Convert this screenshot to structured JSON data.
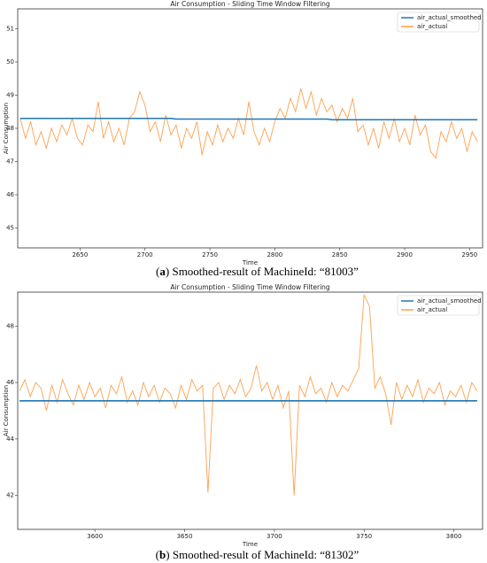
{
  "chart_data": [
    {
      "type": "line",
      "title": "Air Consumption - Sliding Time Window Filtering",
      "x_label": "Time",
      "y_label": "Air Consumption",
      "caption": [
        "(",
        "a",
        ") Smoothed-result of MachineId: “81003”"
      ],
      "xlim": [
        2602,
        2960
      ],
      "xticks": [
        2650,
        2700,
        2750,
        2800,
        2850,
        2900,
        2950
      ],
      "ylim": [
        44.4,
        51.6
      ],
      "yticks": [
        45,
        46,
        47,
        48,
        49,
        50,
        51
      ],
      "legend": "upper right",
      "x": [
        2604,
        2608,
        2612,
        2616,
        2620,
        2624,
        2628,
        2632,
        2636,
        2640,
        2644,
        2648,
        2652,
        2656,
        2660,
        2664,
        2668,
        2672,
        2676,
        2680,
        2684,
        2688,
        2692,
        2696,
        2700,
        2704,
        2708,
        2712,
        2716,
        2720,
        2724,
        2728,
        2732,
        2736,
        2740,
        2744,
        2748,
        2752,
        2756,
        2760,
        2764,
        2768,
        2772,
        2776,
        2780,
        2784,
        2788,
        2792,
        2796,
        2800,
        2804,
        2808,
        2812,
        2816,
        2820,
        2824,
        2828,
        2832,
        2836,
        2840,
        2844,
        2848,
        2852,
        2856,
        2860,
        2864,
        2868,
        2872,
        2876,
        2880,
        2884,
        2888,
        2892,
        2896,
        2900,
        2904,
        2908,
        2912,
        2916,
        2920,
        2924,
        2928,
        2932,
        2936,
        2940,
        2944,
        2948,
        2952,
        2956
      ],
      "series": [
        {
          "name": "air_actual_smoothed",
          "color": "#1f77b4",
          "values": [
            48.3,
            48.3,
            48.3,
            48.3,
            48.3,
            48.3,
            48.3,
            48.3,
            48.3,
            48.3,
            48.3,
            48.3,
            48.3,
            48.3,
            48.3,
            48.3,
            48.3,
            48.3,
            48.3,
            48.3,
            48.3,
            48.3,
            48.3,
            48.3,
            48.3,
            48.3,
            48.3,
            48.3,
            48.3,
            48.3,
            48.28,
            48.28,
            48.28,
            48.28,
            48.28,
            48.28,
            48.28,
            48.28,
            48.28,
            48.28,
            48.28,
            48.28,
            48.28,
            48.28,
            48.28,
            48.28,
            48.28,
            48.28,
            48.28,
            48.28,
            48.28,
            48.28,
            48.28,
            48.28,
            48.28,
            48.28,
            48.28,
            48.28,
            48.28,
            48.28,
            48.26,
            48.26,
            48.26,
            48.26,
            48.26,
            48.26,
            48.26,
            48.26,
            48.26,
            48.26,
            48.26,
            48.26,
            48.26,
            48.26,
            48.26,
            48.26,
            48.26,
            48.26,
            48.26,
            48.26,
            48.26,
            48.26,
            48.26,
            48.26,
            48.26,
            48.26,
            48.26,
            48.26,
            48.26
          ]
        },
        {
          "name": "air_actual",
          "color": "#ffa04d",
          "values": [
            48.3,
            47.7,
            48.2,
            47.5,
            47.9,
            47.4,
            48.0,
            47.6,
            48.1,
            47.8,
            48.3,
            47.7,
            47.5,
            48.1,
            47.9,
            48.8,
            47.7,
            48.2,
            47.6,
            48.0,
            47.5,
            48.3,
            48.5,
            49.1,
            48.7,
            47.9,
            48.2,
            47.6,
            48.4,
            47.8,
            48.1,
            47.4,
            48.0,
            47.7,
            48.2,
            47.2,
            47.9,
            47.5,
            48.1,
            47.6,
            48.0,
            47.7,
            48.3,
            47.8,
            48.8,
            47.9,
            47.5,
            48.0,
            47.6,
            48.2,
            48.6,
            48.3,
            48.9,
            48.5,
            49.2,
            48.6,
            49.1,
            48.4,
            48.9,
            48.5,
            48.7,
            48.2,
            48.6,
            48.3,
            48.9,
            47.9,
            48.1,
            47.5,
            48.0,
            47.4,
            48.2,
            47.7,
            48.3,
            47.6,
            48.0,
            47.5,
            48.4,
            47.8,
            48.1,
            47.3,
            47.1,
            47.9,
            47.6,
            48.2,
            47.7,
            48.0,
            47.3,
            47.9,
            47.6
          ]
        }
      ]
    },
    {
      "type": "line",
      "title": "Air Consumption - Sliding Time Window Filtering",
      "x_label": "Time",
      "y_label": "Air Consumption",
      "caption": [
        "(",
        "b",
        ") Smoothed-result of MachineId: “81302”"
      ],
      "xlim": [
        3557,
        3816
      ],
      "xticks": [
        3600,
        3650,
        3700,
        3750,
        3800
      ],
      "ylim": [
        40.8,
        49.2
      ],
      "yticks": [
        42,
        44,
        46,
        48
      ],
      "legend": "upper right",
      "x": [
        3558,
        3561,
        3564,
        3567,
        3570,
        3573,
        3576,
        3579,
        3582,
        3585,
        3588,
        3591,
        3594,
        3597,
        3600,
        3603,
        3606,
        3609,
        3612,
        3615,
        3618,
        3621,
        3624,
        3627,
        3630,
        3633,
        3636,
        3639,
        3642,
        3645,
        3648,
        3651,
        3654,
        3657,
        3660,
        3663,
        3666,
        3669,
        3672,
        3675,
        3678,
        3681,
        3684,
        3687,
        3690,
        3693,
        3696,
        3699,
        3702,
        3705,
        3708,
        3711,
        3714,
        3717,
        3720,
        3723,
        3726,
        3729,
        3732,
        3735,
        3738,
        3741,
        3744,
        3747,
        3750,
        3753,
        3756,
        3759,
        3762,
        3765,
        3768,
        3771,
        3774,
        3777,
        3780,
        3783,
        3786,
        3789,
        3792,
        3795,
        3798,
        3801,
        3804,
        3807,
        3810,
        3813
      ],
      "series": [
        {
          "name": "air_actual_smoothed",
          "color": "#1f77b4",
          "values": [
            45.35,
            45.35,
            45.35,
            45.35,
            45.35,
            45.35,
            45.35,
            45.35,
            45.35,
            45.35,
            45.35,
            45.35,
            45.35,
            45.35,
            45.35,
            45.35,
            45.35,
            45.35,
            45.35,
            45.35,
            45.35,
            45.35,
            45.35,
            45.35,
            45.35,
            45.35,
            45.35,
            45.35,
            45.35,
            45.35,
            45.35,
            45.35,
            45.35,
            45.35,
            45.35,
            45.35,
            45.35,
            45.35,
            45.35,
            45.35,
            45.35,
            45.35,
            45.35,
            45.35,
            45.35,
            45.35,
            45.35,
            45.35,
            45.35,
            45.35,
            45.35,
            45.35,
            45.35,
            45.35,
            45.35,
            45.35,
            45.35,
            45.35,
            45.35,
            45.35,
            45.35,
            45.35,
            45.35,
            45.35,
            45.35,
            45.35,
            45.35,
            45.35,
            45.35,
            45.35,
            45.35,
            45.35,
            45.35,
            45.35,
            45.35,
            45.35,
            45.35,
            45.35,
            45.35,
            45.35,
            45.35,
            45.35,
            45.35,
            45.35,
            45.35,
            45.35
          ]
        },
        {
          "name": "air_actual",
          "color": "#ffa04d",
          "values": [
            45.7,
            46.1,
            45.5,
            46.0,
            45.8,
            45.0,
            45.9,
            45.3,
            46.1,
            45.6,
            45.2,
            45.9,
            45.4,
            46.0,
            45.5,
            45.8,
            45.1,
            45.9,
            45.6,
            46.2,
            45.3,
            45.7,
            45.2,
            46.0,
            45.5,
            45.9,
            45.3,
            45.8,
            45.6,
            45.1,
            45.9,
            45.4,
            46.1,
            45.7,
            45.9,
            42.1,
            45.8,
            46.0,
            45.4,
            45.9,
            45.6,
            46.1,
            45.5,
            45.8,
            46.6,
            45.7,
            46.0,
            45.4,
            45.9,
            45.1,
            45.7,
            42.0,
            45.9,
            45.5,
            46.2,
            45.6,
            45.8,
            45.3,
            46.0,
            45.5,
            45.9,
            45.7,
            46.1,
            46.5,
            49.1,
            48.7,
            45.8,
            46.2,
            45.6,
            44.5,
            46.0,
            45.4,
            45.9,
            45.5,
            46.1,
            45.3,
            45.8,
            45.6,
            46.0,
            45.2,
            45.7,
            45.5,
            45.9,
            45.3,
            46.0,
            45.7
          ]
        }
      ]
    }
  ]
}
